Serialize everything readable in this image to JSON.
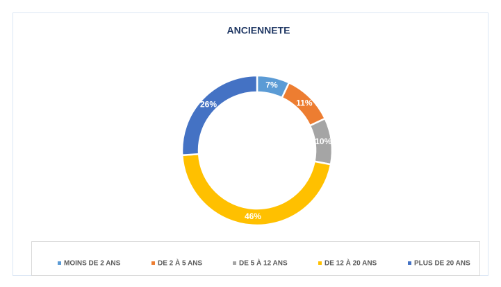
{
  "chart_data": {
    "type": "donut",
    "title": "ANCIENNETE",
    "categories": [
      "MOINS DE 2 ANS",
      "DE 2 À 5 ANS",
      "DE 5 À 12 ANS",
      "DE 12 À 20 ANS",
      "PLUS DE 20 ANS"
    ],
    "values": [
      7,
      11,
      10,
      46,
      26
    ],
    "value_labels": [
      "7%",
      "11%",
      "10%",
      "46%",
      "26%"
    ],
    "colors": [
      "#5b9bd5",
      "#ed7d31",
      "#a5a5a5",
      "#ffc000",
      "#4472c4"
    ],
    "legend": "bottom"
  }
}
